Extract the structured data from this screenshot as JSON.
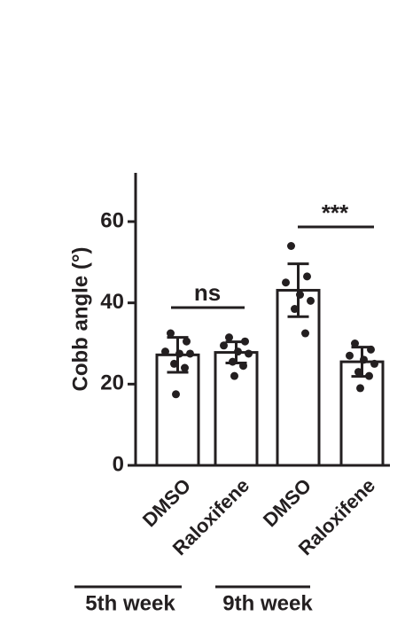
{
  "chart_data": {
    "type": "bar",
    "y_label": "Cobb angle (°)",
    "categories": [
      "DMSO",
      "Raloxifene",
      "DMSO",
      "Raloxifene"
    ],
    "values": [
      27.2,
      27.8,
      43.1,
      25.5
    ],
    "errors": [
      4.3,
      2.6,
      6.5,
      3.6
    ],
    "points": [
      [
        32.5,
        30.5,
        28,
        27.5,
        27.5,
        25,
        24,
        17.5
      ],
      [
        31.5,
        30.5,
        29.5,
        28,
        27.5,
        25.5,
        24.5,
        22
      ],
      [
        54,
        46.5,
        45,
        42,
        40.5,
        38.5,
        32.5
      ],
      [
        30,
        28.5,
        27,
        26,
        25,
        23,
        22,
        19
      ]
    ],
    "group_labels": [
      "5th week",
      "9th week"
    ],
    "annotations": [
      "ns",
      "***"
    ],
    "color": "#ffffff",
    "ylim": [
      0,
      72
    ],
    "yticks": [
      0,
      20,
      40,
      60
    ]
  }
}
